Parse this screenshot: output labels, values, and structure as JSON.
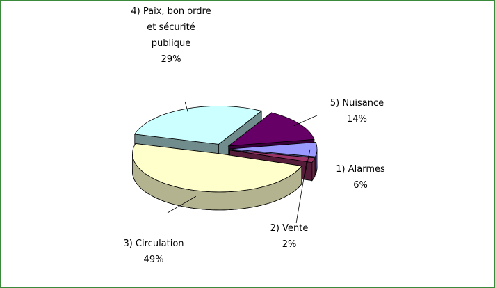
{
  "chart_data": {
    "type": "pie",
    "categories": [
      "1) Alarmes",
      "2) Vente",
      "3) Circulation",
      "4) Paix, bon ordre et sécurité publique",
      "5) Nuisance"
    ],
    "values": [
      6,
      2,
      49,
      29,
      14
    ],
    "value_labels": [
      "6%",
      "2%",
      "49%",
      "29%",
      "14%"
    ],
    "colors": [
      "#9999ff",
      "#993366",
      "#ffffcc",
      "#ccffff",
      "#660066"
    ],
    "three_d": true,
    "exploded": true
  }
}
